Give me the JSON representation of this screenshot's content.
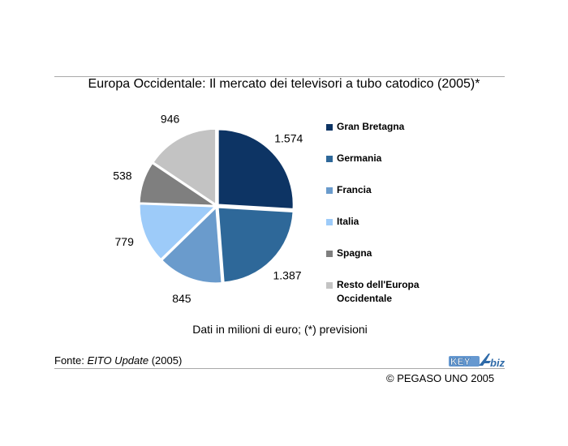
{
  "chart_data": {
    "type": "pie",
    "title": "Europa Occidentale: Il mercato dei televisori a tubo catodico (2005)*",
    "slices": [
      {
        "label": "Gran Bretagna",
        "value": 1574,
        "display": "1.574",
        "color": "#0d3464"
      },
      {
        "label": "Germania",
        "value": 1387,
        "display": "1.387",
        "color": "#2e6899"
      },
      {
        "label": "Francia",
        "value": 845,
        "display": "845",
        "color": "#6a9bcc"
      },
      {
        "label": "Italia",
        "value": 779,
        "display": "779",
        "color": "#9dcbf9"
      },
      {
        "label": "Spagna",
        "value": 538,
        "display": "538",
        "color": "#7f7f7f"
      },
      {
        "label": "Resto dell'Europa Occidentale",
        "value": 946,
        "display": "946",
        "color": "#c3c3c3"
      }
    ],
    "legend_position": "right"
  },
  "note": "Dati in milioni di euro; (*) previsioni",
  "source": {
    "prefix": "Fonte: ",
    "publication": "EITO Update",
    "suffix": " (2005)"
  },
  "logo_text": "KEY4biz",
  "copyright": "© PEGASO UNO 2005"
}
